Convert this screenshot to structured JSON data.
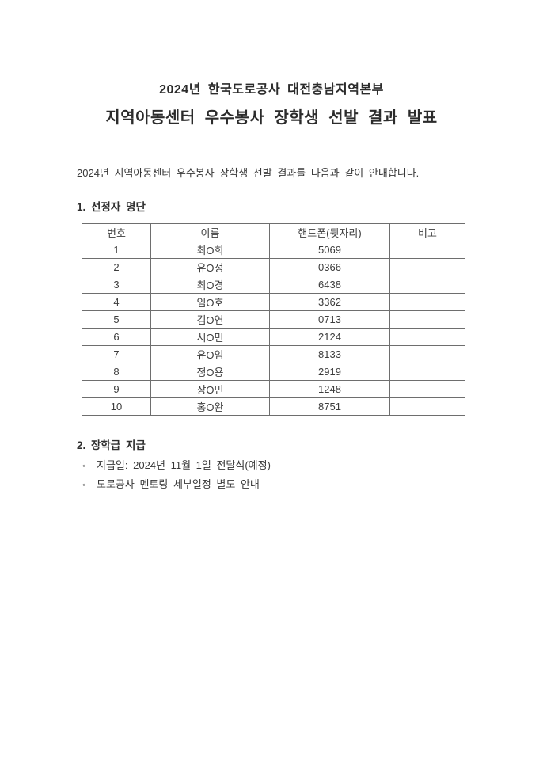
{
  "document": {
    "title_line1": "2024년 한국도로공사 대전충남지역본부",
    "title_line2": "지역아동센터 우수봉사 장학생 선발 결과 발표",
    "intro": "2024년 지역아동센터 우수봉사 장학생 선발 결과를 다음과 같이 안내합니다."
  },
  "section1": {
    "heading": "1. 선정자 명단",
    "table": {
      "headers": [
        "번호",
        "이름",
        "핸드폰(뒷자리)",
        "비고"
      ],
      "rows": [
        {
          "no": "1",
          "name": "최O희",
          "phone": "5069",
          "note": ""
        },
        {
          "no": "2",
          "name": "유O정",
          "phone": "0366",
          "note": ""
        },
        {
          "no": "3",
          "name": "최O경",
          "phone": "6438",
          "note": ""
        },
        {
          "no": "4",
          "name": "임O호",
          "phone": "3362",
          "note": ""
        },
        {
          "no": "5",
          "name": "김O연",
          "phone": "0713",
          "note": ""
        },
        {
          "no": "6",
          "name": "서O민",
          "phone": "2124",
          "note": ""
        },
        {
          "no": "7",
          "name": "유O임",
          "phone": "8133",
          "note": ""
        },
        {
          "no": "8",
          "name": "정O용",
          "phone": "2919",
          "note": ""
        },
        {
          "no": "9",
          "name": "장O민",
          "phone": "1248",
          "note": ""
        },
        {
          "no": "10",
          "name": "홍O완",
          "phone": "8751",
          "note": ""
        }
      ]
    }
  },
  "section2": {
    "heading": "2. 장학급 지급",
    "bullet_marker": "◦",
    "bullets": [
      "지급일: 2024년 11월 1일 전달식(예정)",
      "도로공사 멘토링 세부일정 별도 안내"
    ]
  },
  "colors": {
    "text": "#383838",
    "table_border": "#6e6e6e",
    "page_background": "#ffffff"
  }
}
